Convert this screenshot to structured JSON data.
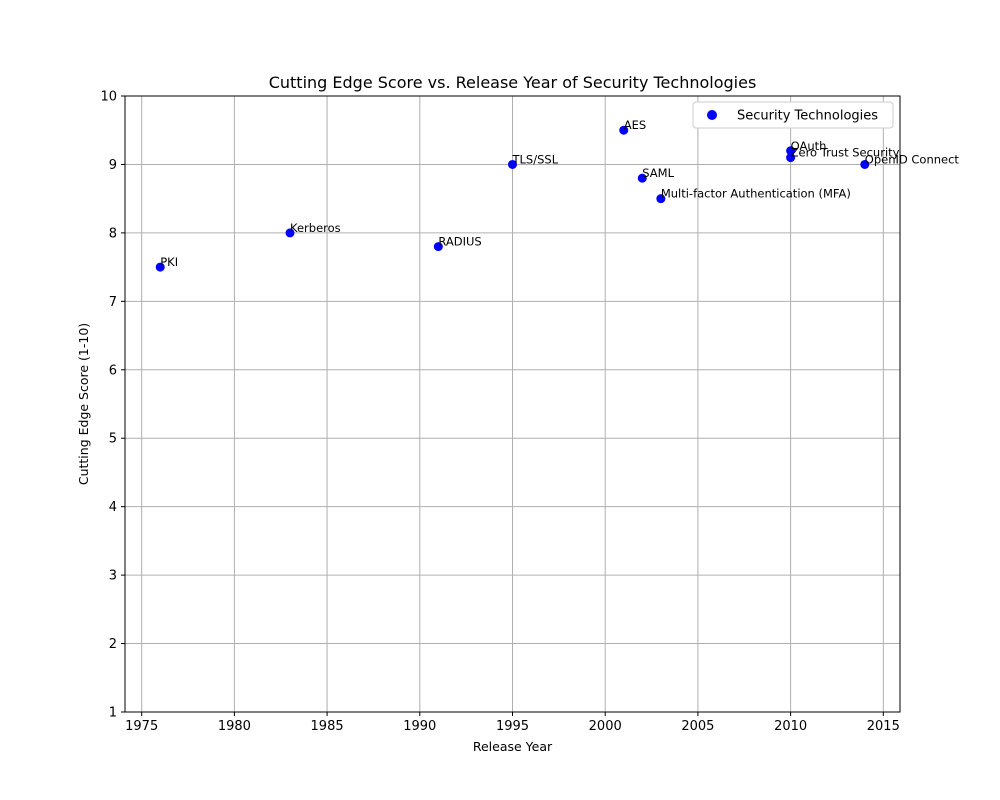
{
  "chart_data": {
    "type": "scatter",
    "title": "Cutting Edge Score vs. Release Year of Security Technologies",
    "xlabel": "Release Year",
    "ylabel": "Cutting Edge Score (1-10)",
    "xlim": [
      1974.1,
      2015.9
    ],
    "ylim": [
      1,
      10
    ],
    "xticks": [
      1975,
      1980,
      1985,
      1990,
      1995,
      2000,
      2005,
      2010,
      2015
    ],
    "yticks": [
      1,
      2,
      3,
      4,
      5,
      6,
      7,
      8,
      9,
      10
    ],
    "grid": true,
    "legend_position": "top-right",
    "series": [
      {
        "name": "Security Technologies",
        "color": "#0000ff",
        "points": [
          {
            "label": "PKI",
            "x": 1976,
            "y": 7.5
          },
          {
            "label": "Kerberos",
            "x": 1983,
            "y": 8.0
          },
          {
            "label": "RADIUS",
            "x": 1991,
            "y": 7.8
          },
          {
            "label": "TLS/SSL",
            "x": 1995,
            "y": 9.0
          },
          {
            "label": "AES",
            "x": 2001,
            "y": 9.5
          },
          {
            "label": "SAML",
            "x": 2002,
            "y": 8.8
          },
          {
            "label": "Multi-factor Authentication (MFA)",
            "x": 2003,
            "y": 8.5
          },
          {
            "label": "OAuth",
            "x": 2010,
            "y": 9.2
          },
          {
            "label": "Zero Trust Security",
            "x": 2010,
            "y": 9.1
          },
          {
            "label": "OpenID Connect",
            "x": 2014,
            "y": 9.0
          }
        ]
      }
    ]
  }
}
